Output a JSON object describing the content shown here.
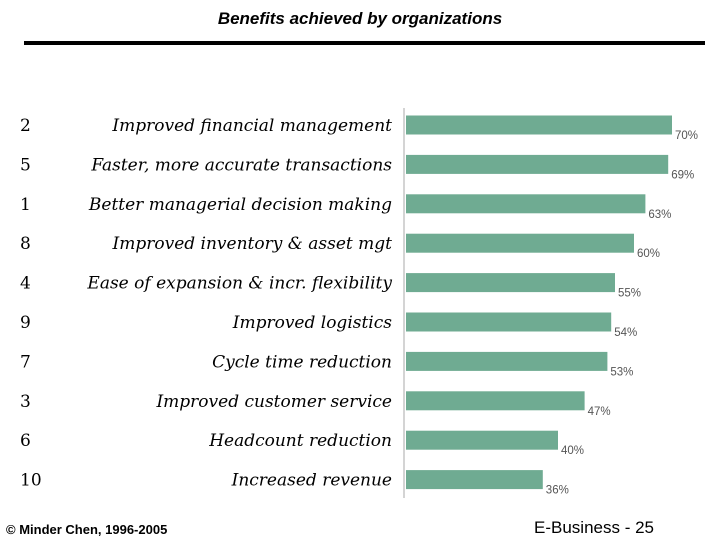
{
  "header": {
    "title": "Benefits achieved by organizations"
  },
  "footer": {
    "copyright": "© Minder Chen, 1996-2005",
    "page": "E-Business - 25"
  },
  "colors": {
    "bar": "#6fab92",
    "value_label": "#555555",
    "axis": "#aaaaaa"
  },
  "chart_data": {
    "type": "bar",
    "orientation": "horizontal",
    "categories": [
      "Improved financial management",
      "Faster, more accurate transactions",
      "Better managerial decision making",
      "Improved inventory & asset mgt",
      "Ease of expansion & incr. flexibility",
      "Improved logistics",
      "Cycle time reduction",
      "Improved customer service",
      "Headcount reduction",
      "Increased revenue"
    ],
    "ranks": [
      "2",
      "5",
      "1",
      "8",
      "4",
      "9",
      "7",
      "3",
      "6",
      "10"
    ],
    "values": [
      70,
      69,
      63,
      60,
      55,
      54,
      53,
      47,
      40,
      36
    ],
    "value_labels": [
      "70%",
      "69%",
      "63%",
      "60%",
      "55%",
      "54%",
      "53%",
      "47%",
      "40%",
      "36%"
    ],
    "xlim": [
      0,
      100
    ],
    "title": "Benefits achieved by organizations",
    "xlabel": "",
    "ylabel": "",
    "grid": false,
    "legend": false
  }
}
